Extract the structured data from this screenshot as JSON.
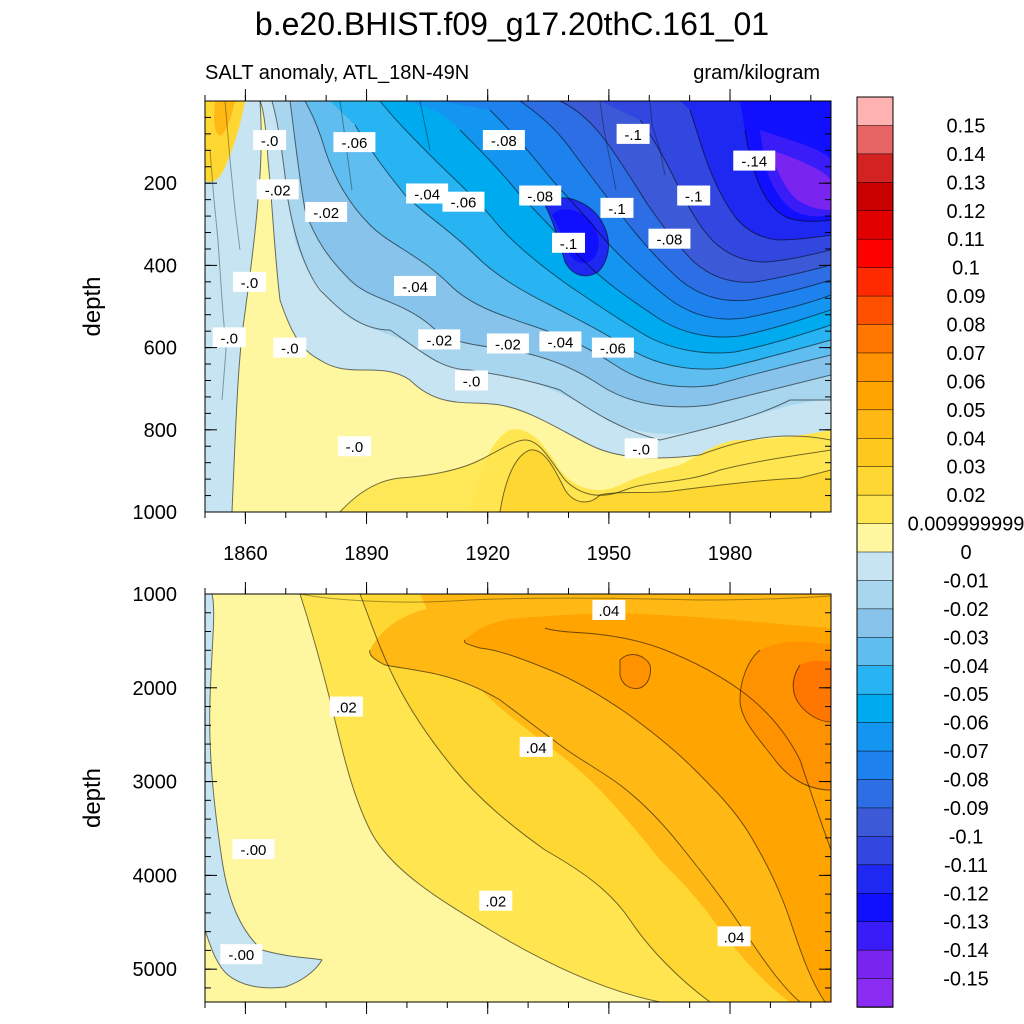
{
  "chart": {
    "title": "b.e20.BHIST.f09_g17.20thC.161_01",
    "subtitle_left": "SALT anomaly, ATL_18N-49N",
    "subtitle_right": "gram/kilogram"
  },
  "chart_data": [
    {
      "type": "heatmap",
      "panel": "upper",
      "ylabel": "depth",
      "x_tick_labels": [
        "1860",
        "1890",
        "1920",
        "1950",
        "1980"
      ],
      "x_ticks": [
        1860,
        1890,
        1920,
        1950,
        1980
      ],
      "xlim": [
        1850,
        2005
      ],
      "y_tick_labels": [
        "200",
        "400",
        "600",
        "800",
        "1000"
      ],
      "y_ticks": [
        200,
        400,
        600,
        800,
        1000
      ],
      "ylim": [
        0,
        1000
      ],
      "y_inverted": true,
      "contour_labels": [
        {
          "text": "-.0",
          "x": 1866,
          "y": 95
        },
        {
          "text": "-.06",
          "x": 1887,
          "y": 100
        },
        {
          "text": "-.08",
          "x": 1924,
          "y": 95
        },
        {
          "text": "-.1",
          "x": 1956,
          "y": 80
        },
        {
          "text": "-.14",
          "x": 1986,
          "y": 145
        },
        {
          "text": "-.02",
          "x": 1868,
          "y": 215
        },
        {
          "text": "-.04",
          "x": 1905,
          "y": 225
        },
        {
          "text": "-.06",
          "x": 1914,
          "y": 245
        },
        {
          "text": "-.08",
          "x": 1933,
          "y": 230
        },
        {
          "text": "-.1",
          "x": 1952,
          "y": 260
        },
        {
          "text": "-.1",
          "x": 1971,
          "y": 230
        },
        {
          "text": "-.02",
          "x": 1880,
          "y": 270
        },
        {
          "text": "-.1",
          "x": 1940,
          "y": 345
        },
        {
          "text": "-.08",
          "x": 1965,
          "y": 335
        },
        {
          "text": "-.0",
          "x": 1861,
          "y": 440
        },
        {
          "text": "-.04",
          "x": 1902,
          "y": 450
        },
        {
          "text": "-.0",
          "x": 1856,
          "y": 575
        },
        {
          "text": "-.0",
          "x": 1871,
          "y": 600
        },
        {
          "text": "-.02",
          "x": 1908,
          "y": 580
        },
        {
          "text": "-.02",
          "x": 1925,
          "y": 590
        },
        {
          "text": "-.04",
          "x": 1938,
          "y": 585
        },
        {
          "text": "-.06",
          "x": 1951,
          "y": 600
        },
        {
          "text": "-.0",
          "x": 1916,
          "y": 680
        },
        {
          "text": "-.0",
          "x": 1887,
          "y": 840
        },
        {
          "text": "-.0",
          "x": 1958,
          "y": 845
        }
      ]
    },
    {
      "type": "heatmap",
      "panel": "lower",
      "ylabel": "depth",
      "y_tick_labels": [
        "1000",
        "2000",
        "3000",
        "4000",
        "5000"
      ],
      "y_ticks": [
        1000,
        2000,
        3000,
        4000,
        5000
      ],
      "ylim": [
        1000,
        5350
      ],
      "y_inverted": true,
      "xlim": [
        1850,
        2005
      ],
      "contour_labels": [
        {
          "text": ".04",
          "x": 1950,
          "y": 1170
        },
        {
          "text": ".02",
          "x": 1885,
          "y": 2200
        },
        {
          "text": ".04",
          "x": 1932,
          "y": 2630
        },
        {
          "text": "-.00",
          "x": 1862,
          "y": 3720
        },
        {
          "text": ".02",
          "x": 1922,
          "y": 4270
        },
        {
          "text": "-.00",
          "x": 1859,
          "y": 4840
        },
        {
          "text": ".04",
          "x": 1981,
          "y": 4650
        }
      ]
    }
  ],
  "colorbar": {
    "levels": [
      "0.15",
      "0.14",
      "0.13",
      "0.12",
      "0.11",
      "0.1",
      "0.09",
      "0.08",
      "0.07",
      "0.06",
      "0.05",
      "0.04",
      "0.03",
      "0.02",
      "0.009999999",
      "0",
      "-0.01",
      "-0.02",
      "-0.03",
      "-0.04",
      "-0.05",
      "-0.06",
      "-0.07",
      "-0.08",
      "-0.09",
      "-0.1",
      "-0.11",
      "-0.12",
      "-0.13",
      "-0.14",
      "-0.15"
    ],
    "colors": [
      "#ffb2b2",
      "#e86565",
      "#d22222",
      "#c80000",
      "#e10000",
      "#ff0000",
      "#ff2a00",
      "#ff5000",
      "#ff7700",
      "#ff9200",
      "#ffa400",
      "#ffb814",
      "#ffc81e",
      "#ffd732",
      "#ffe650",
      "#fff7a0",
      "#c6e4f2",
      "#a8d6ee",
      "#88c3eb",
      "#5fbdf0",
      "#28b3f2",
      "#00aaee",
      "#1496f0",
      "#1e82ee",
      "#2d6ee5",
      "#3c5ad8",
      "#3246e0",
      "#1e28f0",
      "#1010ff",
      "#3a1cf8",
      "#7a24f0",
      "#8a2cf2"
    ]
  }
}
